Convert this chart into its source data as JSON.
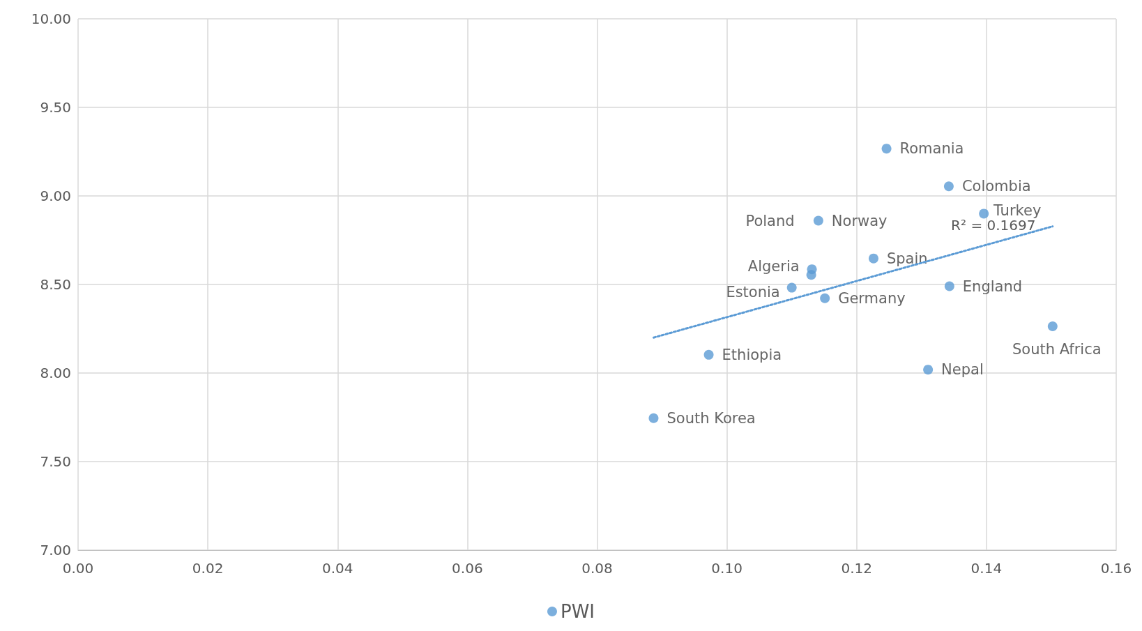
{
  "chart_data": {
    "type": "scatter",
    "series": [
      {
        "name": "PWI",
        "color": "#5b9bd5",
        "x": [
          0.1246,
          0.1342,
          0.1396,
          0.1141,
          0.1226,
          0.1131,
          0.113,
          0.11,
          0.1151,
          0.1343,
          0.1502,
          0.0972,
          0.131,
          0.0887
        ],
        "values": [
          9.267,
          9.054,
          8.9,
          8.86,
          8.647,
          8.586,
          8.554,
          8.482,
          8.422,
          8.49,
          8.264,
          8.103,
          8.019,
          7.745
        ]
      },
      {
        "type": "line",
        "color": "#5b9bd5",
        "line_style": "dotted",
        "marker": "none",
        "x": [
          0.0887,
          0.1502
        ],
        "values": [
          8.2,
          8.828
        ]
      }
    ],
    "annotations": [
      {
        "text": "Romania",
        "x": 0.1246,
        "y": 9.267
      },
      {
        "text": "Colombia",
        "x": 0.1342,
        "y": 9.054
      },
      {
        "text": "Turkey",
        "x": 0.1396,
        "y": 8.9
      },
      {
        "text": "Norway",
        "x": 0.1141,
        "y": 8.86
      },
      {
        "text": "Spain",
        "x": 0.1226,
        "y": 8.647
      },
      {
        "text": "Poland",
        "x": 0.1131,
        "y": 8.586
      },
      {
        "text": "Algeria",
        "x": 0.113,
        "y": 8.554
      },
      {
        "text": "Estonia",
        "x": 0.11,
        "y": 8.482
      },
      {
        "text": "Germany",
        "x": 0.1151,
        "y": 8.422
      },
      {
        "text": "England",
        "x": 0.1343,
        "y": 8.49
      },
      {
        "text": "South Africa",
        "x": 0.1502,
        "y": 8.264
      },
      {
        "text": "Ethiopia",
        "x": 0.0972,
        "y": 8.103
      },
      {
        "text": "Nepal",
        "x": 0.131,
        "y": 8.019
      },
      {
        "text": "South Korea",
        "x": 0.0887,
        "y": 7.745
      },
      "R² = 0.1697"
    ],
    "marker": "circle",
    "xlim": [
      0,
      0.16
    ],
    "xticks": [
      {
        "value": 0,
        "label": "0.00"
      },
      {
        "value": 0.02,
        "label": "0.02"
      },
      {
        "value": 0.04,
        "label": "0.04"
      },
      {
        "value": 0.06,
        "label": "0.06"
      },
      {
        "value": 0.08,
        "label": "0.08"
      },
      {
        "value": 0.1,
        "label": "0.10"
      },
      {
        "value": 0.12,
        "label": "0.12"
      },
      {
        "value": 0.14,
        "label": "0.14"
      },
      {
        "value": 0.16,
        "label": "0.16"
      }
    ],
    "ylim": [
      7,
      10
    ],
    "yticks": [
      {
        "value": 7,
        "label": "7.00"
      },
      {
        "value": 7.5,
        "label": "7.50"
      },
      {
        "value": 8,
        "label": "8.00"
      },
      {
        "value": 8.5,
        "label": "8.50"
      },
      {
        "value": 9,
        "label": "9.00"
      },
      {
        "value": 9.5,
        "label": "9.50"
      },
      {
        "value": 10,
        "label": "10.00"
      }
    ],
    "grid": true,
    "legend": "bottom"
  }
}
